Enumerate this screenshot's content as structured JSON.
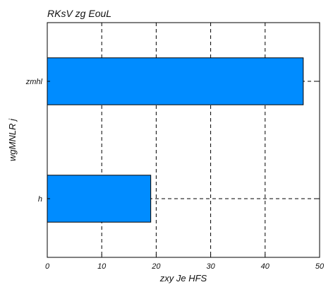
{
  "chart_data": {
    "type": "bar",
    "orientation": "horizontal",
    "title": "RKsV zg EouL",
    "xlabel": "zxy Je  HFS",
    "ylabel": "wgMNLR j",
    "categories": [
      "zmhl",
      "h"
    ],
    "values": [
      47,
      19
    ],
    "xlim": [
      0,
      50
    ],
    "xticks": [
      0,
      10,
      20,
      30,
      40,
      50
    ],
    "grid": true,
    "bar_color": "#008cff",
    "legend": "none"
  }
}
